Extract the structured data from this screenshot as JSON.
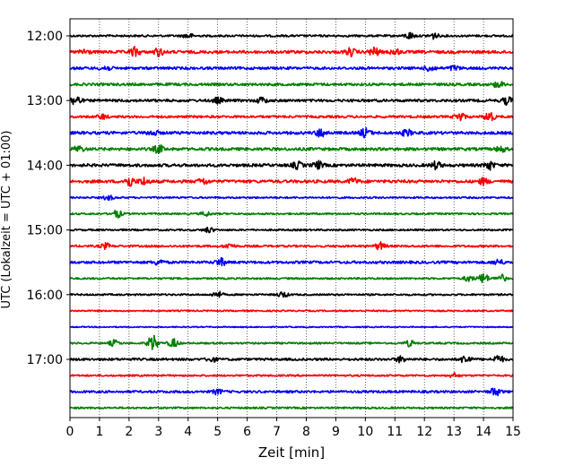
{
  "chart_data": {
    "type": "line",
    "subtype": "helicorder",
    "xlabel": "Zeit  [min]",
    "ylabel": "UTC (Lokalzeit = UTC + 01:00)",
    "xlim": [
      0,
      15
    ],
    "x_ticks": [
      "0",
      "1",
      "2",
      "3",
      "4",
      "5",
      "6",
      "7",
      "8",
      "9",
      "10",
      "11",
      "12",
      "13",
      "14",
      "15"
    ],
    "vertical_grid": "dotted",
    "line_interval_minutes": 15,
    "y_ticks": [
      {
        "label": "12:00",
        "row": 0
      },
      {
        "label": "13:00",
        "row": 4
      },
      {
        "label": "14:00",
        "row": 8
      },
      {
        "label": "15:00",
        "row": 12
      },
      {
        "label": "16:00",
        "row": 16
      },
      {
        "label": "17:00",
        "row": 20
      }
    ],
    "colors": [
      "#000000",
      "#ff0000",
      "#0000ff",
      "#008000"
    ],
    "traces": [
      {
        "start": "12:00",
        "color": "#000000",
        "base": 0.7,
        "bursts": [
          [
            4,
            1.6
          ],
          [
            11.5,
            2.2
          ],
          [
            12.3,
            2.0
          ]
        ]
      },
      {
        "start": "12:15",
        "color": "#ff0000",
        "base": 1.0,
        "bursts": [
          [
            0.5,
            2.0
          ],
          [
            2.2,
            3.0
          ],
          [
            3.0,
            2.5
          ],
          [
            9.5,
            2.5
          ],
          [
            10.3,
            3.2
          ],
          [
            11.0,
            2.0
          ]
        ]
      },
      {
        "start": "12:30",
        "color": "#0000ff",
        "base": 0.9,
        "bursts": [
          [
            1.2,
            1.8
          ],
          [
            12.2,
            2.2
          ],
          [
            13.0,
            1.5
          ]
        ]
      },
      {
        "start": "12:45",
        "color": "#008000",
        "base": 0.9,
        "bursts": [
          [
            14.5,
            2.0
          ]
        ]
      },
      {
        "start": "13:00",
        "color": "#000000",
        "base": 0.9,
        "bursts": [
          [
            0.2,
            3.5
          ],
          [
            5.0,
            1.8
          ],
          [
            6.5,
            2.0
          ],
          [
            14.8,
            2.5
          ]
        ]
      },
      {
        "start": "13:15",
        "color": "#ff0000",
        "base": 0.8,
        "bursts": [
          [
            1.1,
            1.6
          ],
          [
            13.2,
            3.0
          ],
          [
            14.2,
            3.5
          ]
        ]
      },
      {
        "start": "13:30",
        "color": "#0000ff",
        "base": 1.0,
        "bursts": [
          [
            2.8,
            1.8
          ],
          [
            8.5,
            2.8
          ],
          [
            10.0,
            3.0
          ],
          [
            11.4,
            2.0
          ]
        ]
      },
      {
        "start": "13:45",
        "color": "#008000",
        "base": 1.0,
        "bursts": [
          [
            0.3,
            2.0
          ],
          [
            3.0,
            2.5
          ],
          [
            14.6,
            1.8
          ]
        ]
      },
      {
        "start": "14:00",
        "color": "#000000",
        "base": 1.0,
        "bursts": [
          [
            7.7,
            2.2
          ],
          [
            8.4,
            2.5
          ],
          [
            12.4,
            2.4
          ],
          [
            14.2,
            2.8
          ]
        ]
      },
      {
        "start": "14:15",
        "color": "#ff0000",
        "base": 1.0,
        "bursts": [
          [
            2.0,
            3.5
          ],
          [
            2.5,
            2.5
          ],
          [
            4.5,
            2.0
          ],
          [
            9.6,
            2.0
          ],
          [
            14.0,
            2.0
          ]
        ]
      },
      {
        "start": "14:30",
        "color": "#0000ff",
        "base": 0.6,
        "bursts": [
          [
            1.3,
            1.6
          ]
        ]
      },
      {
        "start": "14:45",
        "color": "#008000",
        "base": 0.6,
        "bursts": [
          [
            1.6,
            2.5
          ],
          [
            4.6,
            1.5
          ]
        ]
      },
      {
        "start": "15:00",
        "color": "#000000",
        "base": 0.6,
        "bursts": [
          [
            4.7,
            1.8
          ]
        ]
      },
      {
        "start": "15:15",
        "color": "#ff0000",
        "base": 0.7,
        "bursts": [
          [
            1.2,
            1.8
          ],
          [
            5.4,
            1.8
          ],
          [
            10.5,
            2.5
          ]
        ]
      },
      {
        "start": "15:30",
        "color": "#0000ff",
        "base": 0.9,
        "bursts": [
          [
            3.0,
            1.8
          ],
          [
            5.1,
            2.5
          ],
          [
            14.5,
            1.8
          ]
        ]
      },
      {
        "start": "15:45",
        "color": "#008000",
        "base": 0.6,
        "bursts": [
          [
            13.5,
            2.0
          ],
          [
            14.0,
            3.5
          ],
          [
            14.6,
            2.5
          ]
        ]
      },
      {
        "start": "16:00",
        "color": "#000000",
        "base": 0.6,
        "bursts": [
          [
            5.0,
            2.2
          ],
          [
            7.2,
            2.0
          ]
        ]
      },
      {
        "start": "16:15",
        "color": "#ff0000",
        "base": 0.5,
        "bursts": []
      },
      {
        "start": "16:30",
        "color": "#0000ff",
        "base": 0.4,
        "bursts": []
      },
      {
        "start": "16:45",
        "color": "#008000",
        "base": 0.6,
        "bursts": [
          [
            1.5,
            2.0
          ],
          [
            2.8,
            5.5
          ],
          [
            3.5,
            3.0
          ],
          [
            11.5,
            2.0
          ]
        ]
      },
      {
        "start": "17:00",
        "color": "#000000",
        "base": 0.8,
        "bursts": [
          [
            4.8,
            1.6
          ],
          [
            11.2,
            2.0
          ],
          [
            13.4,
            3.0
          ],
          [
            14.5,
            2.8
          ]
        ]
      },
      {
        "start": "17:15",
        "color": "#ff0000",
        "base": 0.6,
        "bursts": [
          [
            13.0,
            1.5
          ]
        ]
      },
      {
        "start": "17:30",
        "color": "#0000ff",
        "base": 0.8,
        "bursts": [
          [
            5.0,
            1.6
          ],
          [
            14.4,
            2.8
          ]
        ]
      },
      {
        "start": "17:45",
        "color": "#008000",
        "base": 0.6,
        "bursts": []
      }
    ]
  }
}
